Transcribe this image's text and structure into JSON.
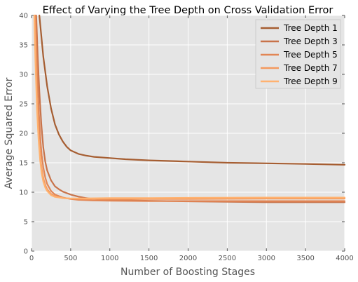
{
  "chart_data": {
    "type": "line",
    "title": "Effect of Varying the Tree Depth on Cross Validation Error",
    "xlabel": "Number of Boosting Stages",
    "ylabel": "Average Squared Error",
    "xlim": [
      0,
      4000
    ],
    "ylim": [
      0,
      40
    ],
    "xticks": [
      0,
      500,
      1000,
      1500,
      2000,
      2500,
      3000,
      3500,
      4000
    ],
    "yticks": [
      0,
      5,
      10,
      15,
      20,
      25,
      30,
      35,
      40
    ],
    "grid": true,
    "background": "#e5e5e5",
    "legend_position": "top-right",
    "series": [
      {
        "name": "Tree Depth 1",
        "color": "#a65e32",
        "x": [
          100,
          150,
          200,
          250,
          300,
          350,
          400,
          450,
          500,
          600,
          700,
          800,
          1000,
          1200,
          1500,
          2000,
          2500,
          3000,
          3500,
          4000
        ],
        "y": [
          40,
          33,
          28,
          24.2,
          21.5,
          19.8,
          18.6,
          17.7,
          17.1,
          16.5,
          16.2,
          16.0,
          15.8,
          15.6,
          15.4,
          15.2,
          15.0,
          14.9,
          14.8,
          14.65
        ]
      },
      {
        "name": "Tree Depth 3",
        "color": "#c8734a",
        "x": [
          60,
          80,
          100,
          125,
          150,
          175,
          200,
          250,
          300,
          350,
          400,
          500,
          600,
          700,
          800,
          1000,
          1500,
          2000,
          3000,
          4000
        ],
        "y": [
          40,
          33,
          27,
          21.5,
          17.6,
          15.2,
          13.7,
          12.0,
          11.0,
          10.5,
          10.1,
          9.6,
          9.25,
          9.0,
          8.85,
          8.7,
          8.55,
          8.45,
          8.3,
          8.3
        ]
      },
      {
        "name": "Tree Depth 5",
        "color": "#e28655",
        "x": [
          50,
          70,
          90,
          110,
          130,
          150,
          175,
          200,
          250,
          300,
          400,
          500,
          600,
          800,
          1000,
          1500,
          2000,
          3000,
          4000
        ],
        "y": [
          40,
          31,
          24.5,
          19.5,
          16.3,
          14.2,
          12.5,
          11.4,
          10.2,
          9.6,
          9.1,
          8.85,
          8.7,
          8.6,
          8.55,
          8.5,
          8.5,
          8.5,
          8.5
        ]
      },
      {
        "name": "Tree Depth 7",
        "color": "#f49a5e",
        "x": [
          40,
          60,
          80,
          100,
          120,
          140,
          160,
          180,
          200,
          250,
          300,
          400,
          500,
          700,
          1000,
          1500,
          2000,
          3000,
          4000
        ],
        "y": [
          40,
          30,
          22.5,
          17.8,
          15.0,
          13.1,
          11.9,
          11.1,
          10.5,
          9.7,
          9.3,
          9.0,
          8.9,
          8.85,
          8.85,
          8.85,
          8.85,
          8.9,
          8.9
        ]
      },
      {
        "name": "Tree Depth 9",
        "color": "#ffb270",
        "x": [
          35,
          50,
          70,
          90,
          110,
          130,
          150,
          175,
          200,
          250,
          300,
          400,
          500,
          700,
          1000,
          1500,
          2000,
          3000,
          4000
        ],
        "y": [
          40,
          32,
          24,
          18.8,
          15.4,
          13.2,
          11.8,
          10.8,
          10.2,
          9.5,
          9.2,
          9.0,
          8.95,
          8.95,
          9.0,
          9.0,
          9.05,
          9.1,
          9.1
        ]
      }
    ]
  }
}
